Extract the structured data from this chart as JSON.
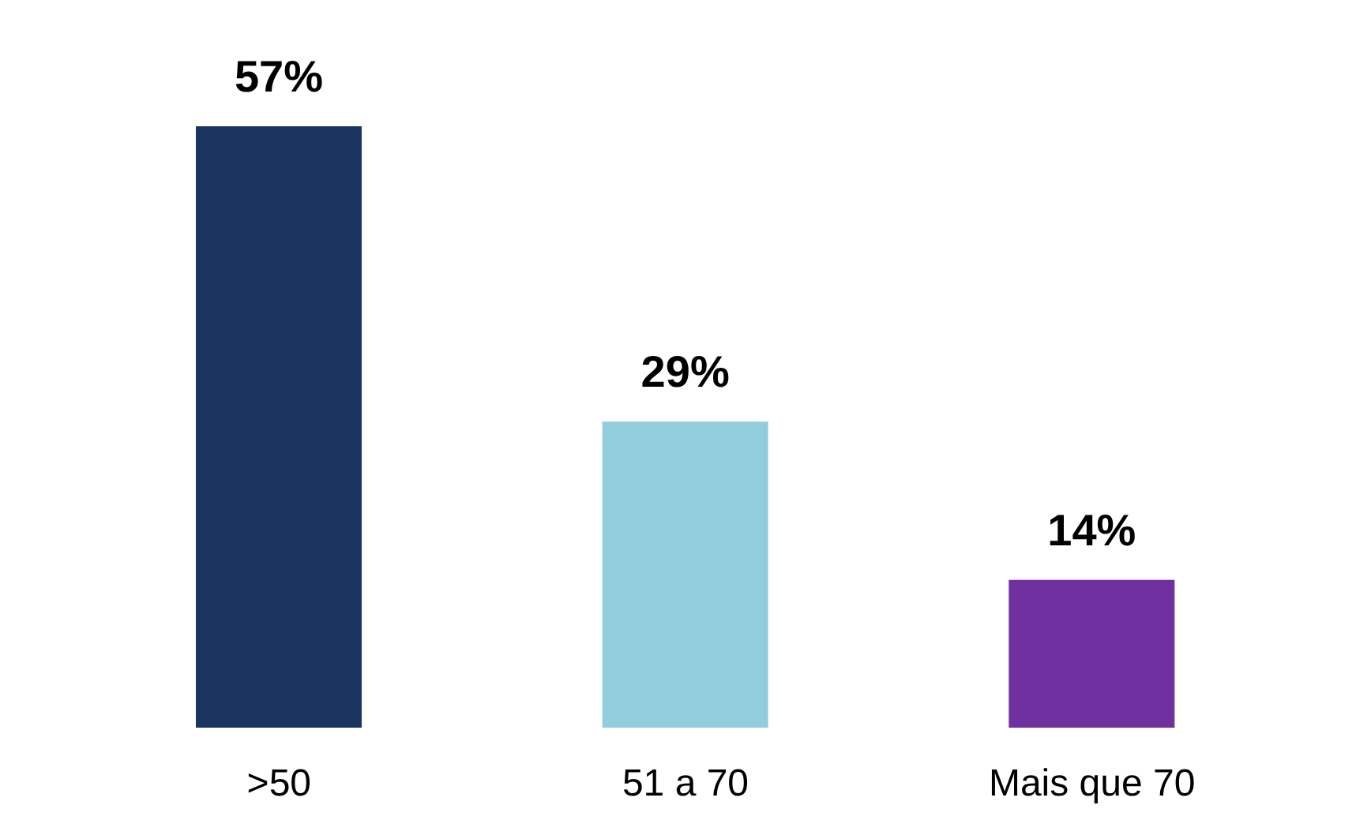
{
  "chart_data": {
    "type": "bar",
    "categories": [
      ">50",
      "51 a 70",
      "Mais que 70"
    ],
    "values": [
      57,
      29,
      14
    ],
    "colors": [
      "#1a3560",
      "#92cddd",
      "#7030a0"
    ],
    "value_labels": [
      "57%",
      "29%",
      "14%"
    ]
  }
}
